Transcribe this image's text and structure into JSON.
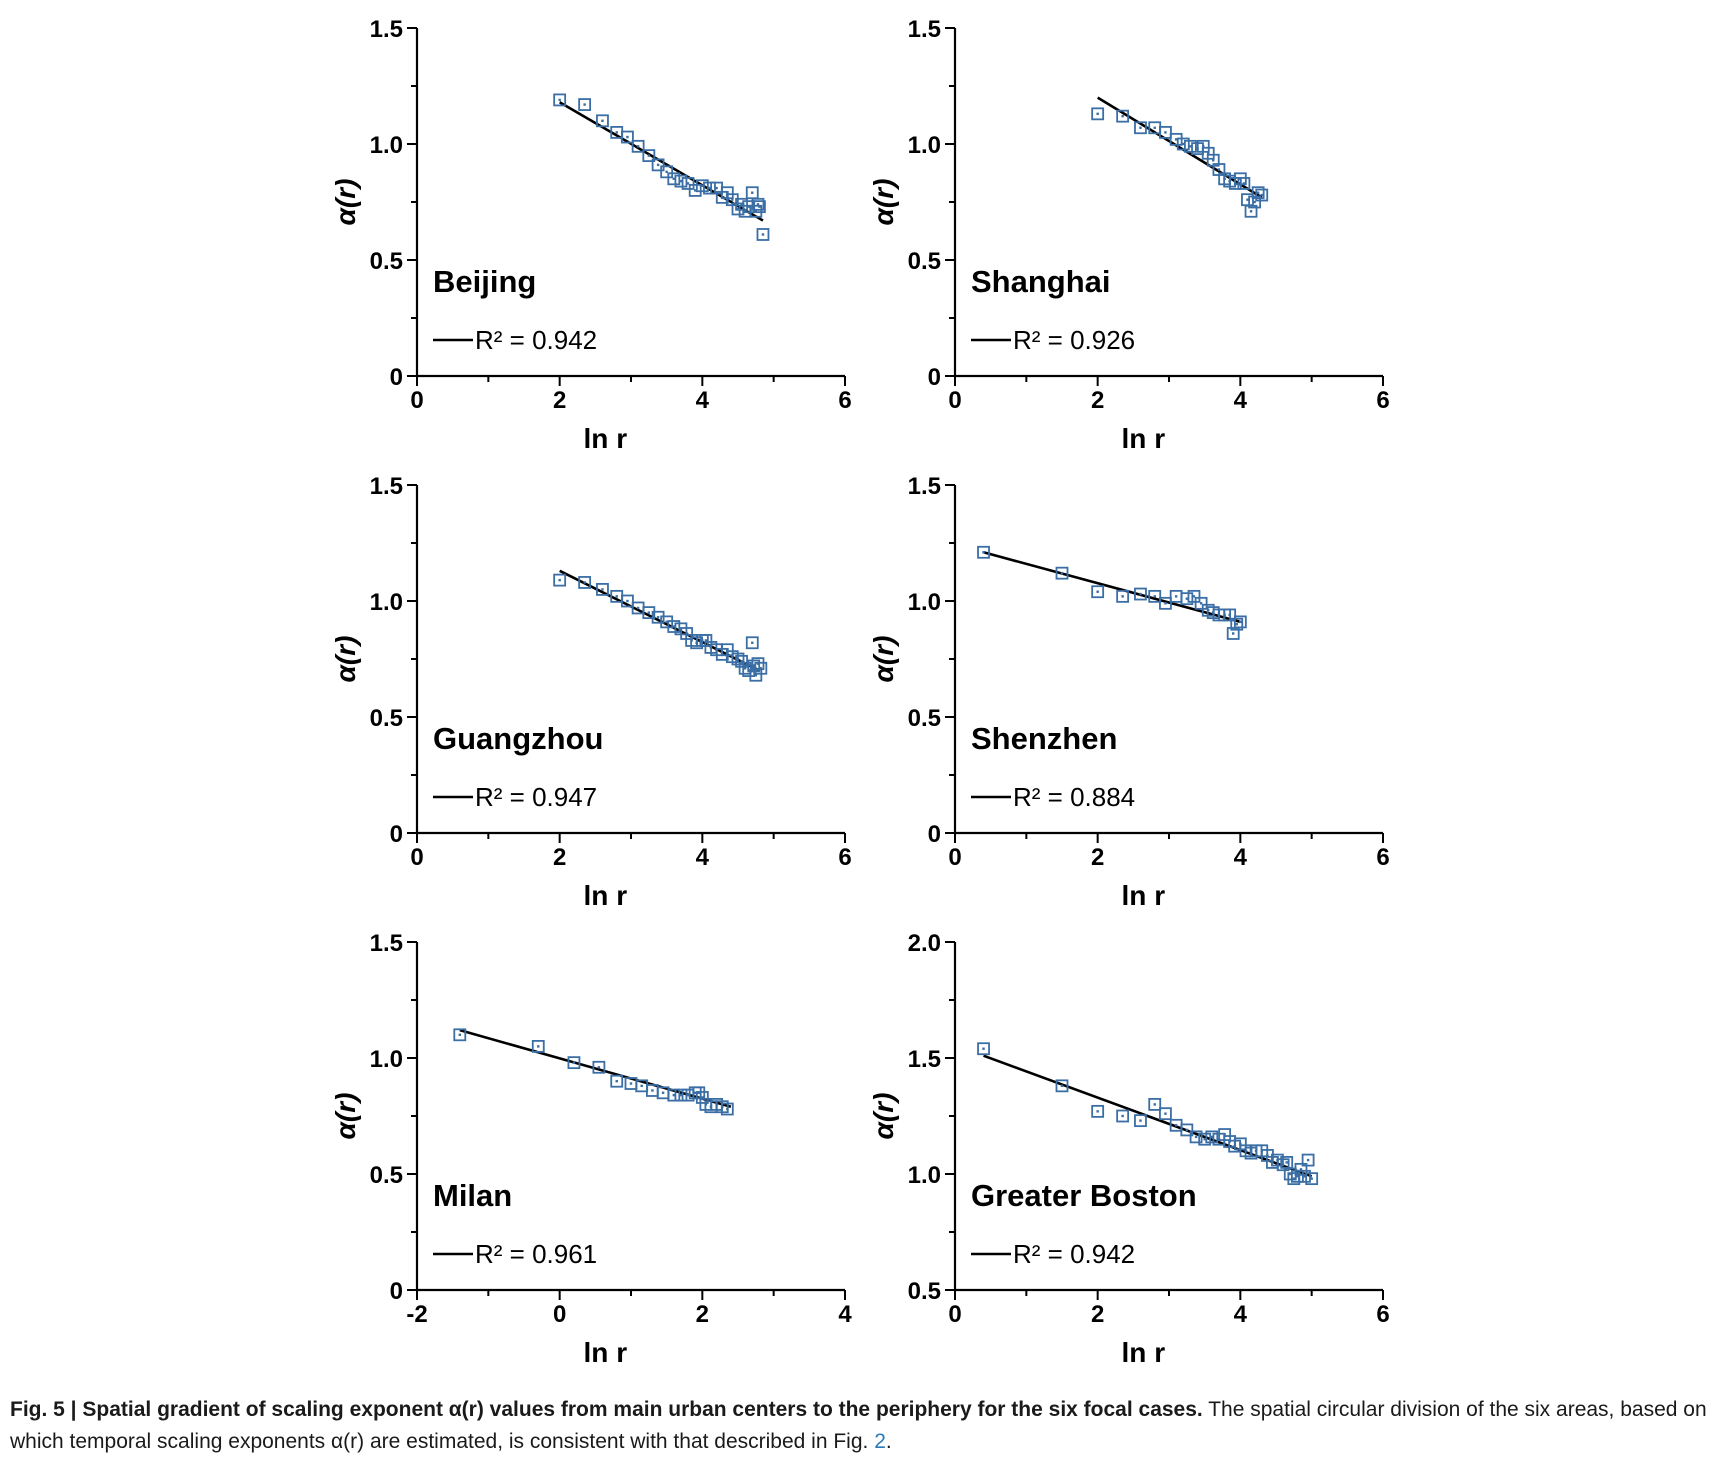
{
  "chart_data": [
    {
      "type": "scatter",
      "title": "Beijing",
      "xlabel": "ln r",
      "ylabel": "α(r)",
      "xlim": [
        0,
        6
      ],
      "ylim": [
        0,
        1.5
      ],
      "xticks": [
        "0",
        "2",
        "4",
        "6"
      ],
      "yticks": [
        "0",
        "0.5",
        "1.0",
        "1.5"
      ],
      "r2_label": "R² = 0.942",
      "fit": {
        "x": [
          2.0,
          4.85
        ],
        "y": [
          1.18,
          0.67
        ]
      },
      "points": [
        [
          2.0,
          1.19
        ],
        [
          2.35,
          1.17
        ],
        [
          2.6,
          1.1
        ],
        [
          2.8,
          1.05
        ],
        [
          2.95,
          1.03
        ],
        [
          3.1,
          0.99
        ],
        [
          3.25,
          0.95
        ],
        [
          3.38,
          0.91
        ],
        [
          3.5,
          0.88
        ],
        [
          3.6,
          0.85
        ],
        [
          3.7,
          0.84
        ],
        [
          3.8,
          0.83
        ],
        [
          3.9,
          0.8
        ],
        [
          4.0,
          0.82
        ],
        [
          4.1,
          0.81
        ],
        [
          4.2,
          0.81
        ],
        [
          4.28,
          0.77
        ],
        [
          4.35,
          0.79
        ],
        [
          4.42,
          0.76
        ],
        [
          4.5,
          0.72
        ],
        [
          4.55,
          0.74
        ],
        [
          4.6,
          0.71
        ],
        [
          4.65,
          0.73
        ],
        [
          4.7,
          0.79
        ],
        [
          4.75,
          0.71
        ],
        [
          4.78,
          0.74
        ],
        [
          4.8,
          0.73
        ],
        [
          4.85,
          0.61
        ]
      ]
    },
    {
      "type": "scatter",
      "title": "Shanghai",
      "xlabel": "ln r",
      "ylabel": "α(r)",
      "xlim": [
        0,
        6
      ],
      "ylim": [
        0,
        1.5
      ],
      "xticks": [
        "0",
        "2",
        "4",
        "6"
      ],
      "yticks": [
        "0",
        "0.5",
        "1.0",
        "1.5"
      ],
      "r2_label": "R² = 0.926",
      "fit": {
        "x": [
          2.0,
          4.3
        ],
        "y": [
          1.2,
          0.77
        ]
      },
      "points": [
        [
          2.0,
          1.13
        ],
        [
          2.35,
          1.12
        ],
        [
          2.6,
          1.07
        ],
        [
          2.8,
          1.07
        ],
        [
          2.95,
          1.05
        ],
        [
          3.1,
          1.02
        ],
        [
          3.2,
          1.0
        ],
        [
          3.3,
          0.99
        ],
        [
          3.4,
          0.98
        ],
        [
          3.48,
          0.99
        ],
        [
          3.55,
          0.96
        ],
        [
          3.62,
          0.93
        ],
        [
          3.7,
          0.89
        ],
        [
          3.78,
          0.85
        ],
        [
          3.85,
          0.84
        ],
        [
          3.93,
          0.83
        ],
        [
          4.0,
          0.85
        ],
        [
          4.05,
          0.83
        ],
        [
          4.1,
          0.76
        ],
        [
          4.15,
          0.71
        ],
        [
          4.2,
          0.75
        ],
        [
          4.25,
          0.79
        ],
        [
          4.3,
          0.78
        ]
      ]
    },
    {
      "type": "scatter",
      "title": "Guangzhou",
      "xlabel": "ln r",
      "ylabel": "α(r)",
      "xlim": [
        0,
        6
      ],
      "ylim": [
        0,
        1.5
      ],
      "xticks": [
        "0",
        "2",
        "4",
        "6"
      ],
      "yticks": [
        "0",
        "0.5",
        "1.0",
        "1.5"
      ],
      "r2_label": "R² = 0.947",
      "fit": {
        "x": [
          2.0,
          4.8
        ],
        "y": [
          1.13,
          0.7
        ]
      },
      "points": [
        [
          2.0,
          1.09
        ],
        [
          2.35,
          1.08
        ],
        [
          2.6,
          1.05
        ],
        [
          2.8,
          1.02
        ],
        [
          2.95,
          1.0
        ],
        [
          3.1,
          0.97
        ],
        [
          3.25,
          0.95
        ],
        [
          3.38,
          0.93
        ],
        [
          3.5,
          0.91
        ],
        [
          3.6,
          0.89
        ],
        [
          3.7,
          0.88
        ],
        [
          3.78,
          0.86
        ],
        [
          3.85,
          0.83
        ],
        [
          3.92,
          0.82
        ],
        [
          4.0,
          0.83
        ],
        [
          4.05,
          0.83
        ],
        [
          4.12,
          0.8
        ],
        [
          4.2,
          0.79
        ],
        [
          4.28,
          0.77
        ],
        [
          4.35,
          0.79
        ],
        [
          4.42,
          0.76
        ],
        [
          4.5,
          0.75
        ],
        [
          4.55,
          0.74
        ],
        [
          4.6,
          0.71
        ],
        [
          4.65,
          0.7
        ],
        [
          4.7,
          0.82
        ],
        [
          4.72,
          0.72
        ],
        [
          4.75,
          0.68
        ],
        [
          4.78,
          0.73
        ],
        [
          4.82,
          0.71
        ]
      ]
    },
    {
      "type": "scatter",
      "title": "Shenzhen",
      "xlabel": "ln r",
      "ylabel": "α(r)",
      "xlim": [
        0,
        6
      ],
      "ylim": [
        0,
        1.5
      ],
      "xticks": [
        "0",
        "2",
        "4",
        "6"
      ],
      "yticks": [
        "0",
        "0.5",
        "1.0",
        "1.5"
      ],
      "r2_label": "R² = 0.884",
      "fit": {
        "x": [
          0.4,
          4.0
        ],
        "y": [
          1.21,
          0.91
        ]
      },
      "points": [
        [
          0.4,
          1.21
        ],
        [
          1.5,
          1.12
        ],
        [
          2.0,
          1.04
        ],
        [
          2.35,
          1.02
        ],
        [
          2.6,
          1.03
        ],
        [
          2.8,
          1.02
        ],
        [
          2.95,
          0.99
        ],
        [
          3.1,
          1.02
        ],
        [
          3.25,
          1.01
        ],
        [
          3.35,
          1.02
        ],
        [
          3.45,
          0.99
        ],
        [
          3.55,
          0.96
        ],
        [
          3.62,
          0.95
        ],
        [
          3.7,
          0.94
        ],
        [
          3.78,
          0.94
        ],
        [
          3.85,
          0.94
        ],
        [
          3.9,
          0.86
        ],
        [
          3.95,
          0.9
        ],
        [
          4.0,
          0.91
        ]
      ]
    },
    {
      "type": "scatter",
      "title": "Milan",
      "xlabel": "ln r",
      "ylabel": "α(r)",
      "xlim": [
        -2,
        4
      ],
      "ylim": [
        0,
        1.5
      ],
      "xticks": [
        "-2",
        "0",
        "2",
        "4"
      ],
      "yticks": [
        "0",
        "0.5",
        "1.0",
        "1.5"
      ],
      "r2_label": "R² = 0.961",
      "fit": {
        "x": [
          -1.4,
          2.4
        ],
        "y": [
          1.12,
          0.79
        ]
      },
      "points": [
        [
          -1.4,
          1.1
        ],
        [
          -0.3,
          1.05
        ],
        [
          0.2,
          0.98
        ],
        [
          0.55,
          0.96
        ],
        [
          0.8,
          0.9
        ],
        [
          1.0,
          0.89
        ],
        [
          1.15,
          0.88
        ],
        [
          1.3,
          0.86
        ],
        [
          1.45,
          0.85
        ],
        [
          1.6,
          0.84
        ],
        [
          1.7,
          0.84
        ],
        [
          1.8,
          0.84
        ],
        [
          1.9,
          0.85
        ],
        [
          1.95,
          0.85
        ],
        [
          2.0,
          0.83
        ],
        [
          2.05,
          0.8
        ],
        [
          2.12,
          0.79
        ],
        [
          2.2,
          0.8
        ],
        [
          2.28,
          0.79
        ],
        [
          2.35,
          0.78
        ]
      ]
    },
    {
      "type": "scatter",
      "title": "Greater Boston",
      "xlabel": "ln r",
      "ylabel": "α(r)",
      "xlim": [
        0,
        6
      ],
      "ylim": [
        0.5,
        2.0
      ],
      "xticks": [
        "0",
        "2",
        "4",
        "6"
      ],
      "yticks": [
        "0.5",
        "1.0",
        "1.5",
        "2.0"
      ],
      "r2_label": "R² = 0.942",
      "fit": {
        "x": [
          0.4,
          5.0
        ],
        "y": [
          1.51,
          0.99
        ]
      },
      "points": [
        [
          0.4,
          1.54
        ],
        [
          1.5,
          1.38
        ],
        [
          2.0,
          1.27
        ],
        [
          2.35,
          1.25
        ],
        [
          2.6,
          1.23
        ],
        [
          2.8,
          1.3
        ],
        [
          2.95,
          1.26
        ],
        [
          3.1,
          1.21
        ],
        [
          3.25,
          1.19
        ],
        [
          3.38,
          1.16
        ],
        [
          3.5,
          1.15
        ],
        [
          3.6,
          1.16
        ],
        [
          3.7,
          1.15
        ],
        [
          3.78,
          1.17
        ],
        [
          3.85,
          1.14
        ],
        [
          3.92,
          1.12
        ],
        [
          4.0,
          1.13
        ],
        [
          4.08,
          1.1
        ],
        [
          4.15,
          1.09
        ],
        [
          4.22,
          1.1
        ],
        [
          4.3,
          1.1
        ],
        [
          4.38,
          1.08
        ],
        [
          4.45,
          1.05
        ],
        [
          4.52,
          1.06
        ],
        [
          4.6,
          1.04
        ],
        [
          4.65,
          1.05
        ],
        [
          4.7,
          1.0
        ],
        [
          4.75,
          0.98
        ],
        [
          4.8,
          0.99
        ],
        [
          4.85,
          1.02
        ],
        [
          4.9,
          0.99
        ],
        [
          4.95,
          1.06
        ],
        [
          5.0,
          0.98
        ]
      ]
    }
  ],
  "caption": {
    "bold": "Fig. 5 | Spatial gradient of scaling exponent α(r) values from main urban centers to the periphery for the six focal cases.",
    "text": " The spatial circular division of the six areas, based on which temporal scaling exponents α(r) are estimated, is consistent with that described in Fig. ",
    "fig_ref": "2",
    "end": "."
  },
  "colors": {
    "marker": "#3a6ea5",
    "line": "#000000"
  }
}
